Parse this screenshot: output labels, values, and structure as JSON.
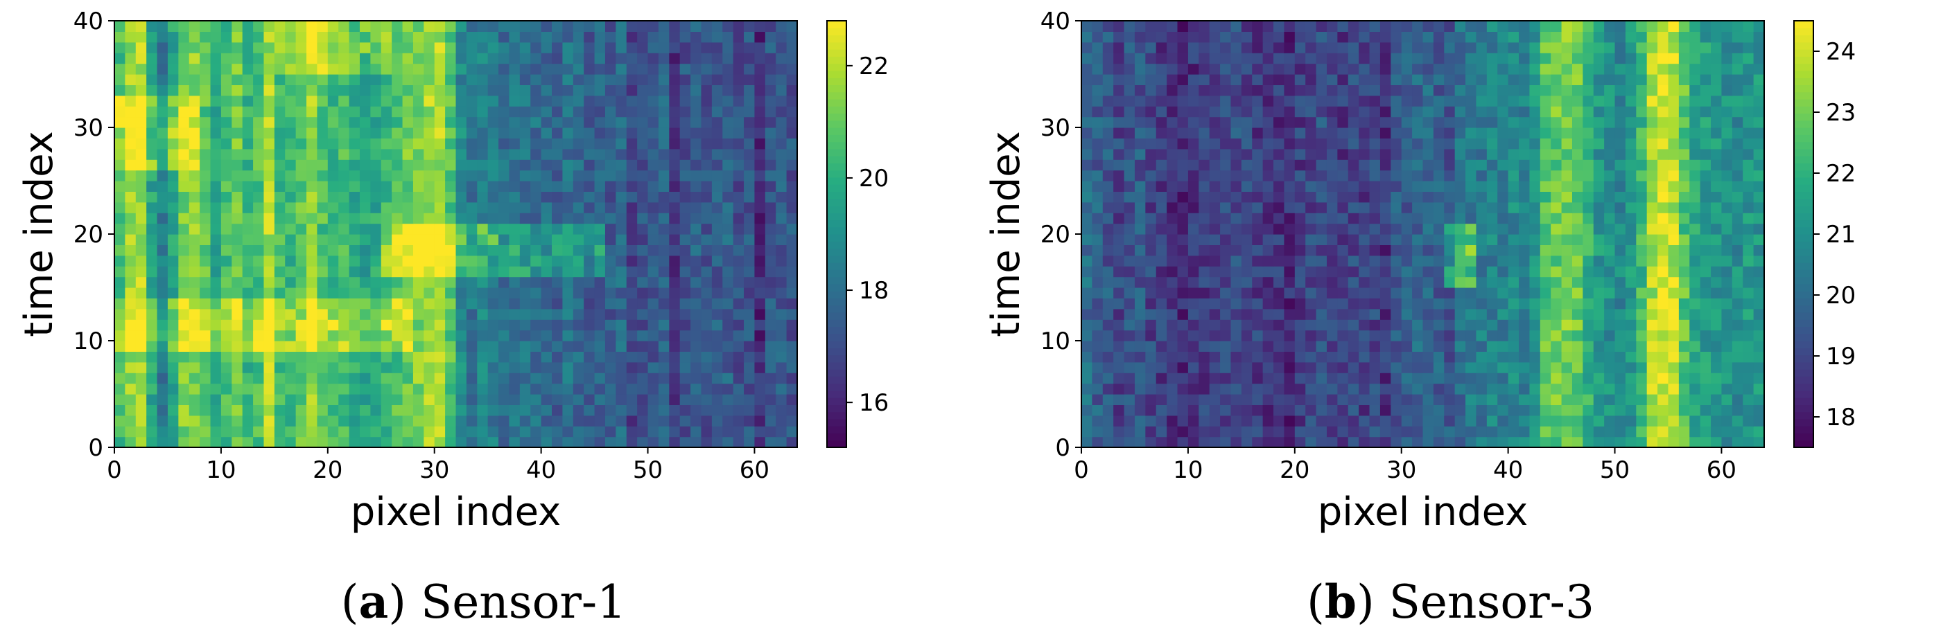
{
  "chart_data": [
    {
      "type": "heatmap",
      "panel_label": "a",
      "caption": "Sensor-1",
      "xlabel": "pixel index",
      "ylabel": "time index",
      "xlim": [
        0,
        64
      ],
      "ylim": [
        0,
        40
      ],
      "x_ticks": [
        0,
        10,
        20,
        30,
        40,
        50,
        60
      ],
      "y_ticks": [
        0,
        10,
        20,
        30,
        40
      ],
      "colorbar_ticks": [
        16,
        18,
        20,
        22
      ],
      "colorbar_range": [
        15.2,
        22.8
      ],
      "colormap": "viridis",
      "grid": false,
      "rows": 40,
      "cols": 64,
      "column_profile": [
        20.5,
        21.6,
        21.8,
        19.6,
        18.4,
        19.8,
        21.2,
        21.4,
        20.8,
        19.8,
        20.4,
        21.0,
        20.2,
        20.6,
        21.8,
        20.4,
        20.2,
        20.8,
        21.6,
        20.6,
        20.2,
        20.4,
        19.8,
        19.6,
        19.8,
        20.2,
        20.6,
        21.0,
        21.4,
        21.8,
        21.8,
        20.8,
        18.8,
        18.2,
        18.6,
        18.4,
        18.0,
        18.2,
        18.0,
        18.0,
        17.8,
        17.6,
        18.0,
        17.8,
        17.4,
        17.6,
        17.4,
        17.8,
        16.8,
        17.2,
        17.4,
        17.6,
        16.4,
        17.2,
        17.6,
        17.2,
        17.4,
        17.6,
        17.0,
        17.2,
        16.2,
        17.2,
        17.4,
        17.2
      ],
      "bright_bands": [
        {
          "t": [
            9,
            14
          ],
          "x": [
            0,
            28
          ],
          "delta": 1.6
        },
        {
          "t": [
            26,
            33
          ],
          "x": [
            0,
            8
          ],
          "delta": 1.6
        },
        {
          "t": [
            35,
            40
          ],
          "x": [
            15,
            26
          ],
          "delta": 1.4
        },
        {
          "t": [
            16,
            21
          ],
          "x": [
            25,
            46
          ],
          "delta": 1.8
        }
      ]
    },
    {
      "type": "heatmap",
      "panel_label": "b",
      "caption": "Sensor-3",
      "xlabel": "pixel index",
      "ylabel": "time index",
      "xlim": [
        0,
        64
      ],
      "ylim": [
        0,
        40
      ],
      "x_ticks": [
        0,
        10,
        20,
        30,
        40,
        50,
        60
      ],
      "y_ticks": [
        0,
        10,
        20,
        30,
        40
      ],
      "colorbar_ticks": [
        18,
        19,
        20,
        21,
        22,
        23,
        24
      ],
      "colorbar_range": [
        17.5,
        24.5
      ],
      "colormap": "viridis",
      "grid": false,
      "rows": 40,
      "cols": 64,
      "column_profile": [
        20.0,
        19.6,
        19.4,
        19.0,
        19.2,
        19.4,
        19.0,
        18.8,
        18.6,
        18.4,
        18.6,
        18.8,
        18.8,
        19.0,
        19.2,
        19.0,
        18.8,
        18.6,
        18.6,
        18.4,
        18.8,
        19.0,
        19.2,
        19.0,
        18.8,
        19.0,
        18.8,
        19.0,
        18.6,
        19.4,
        19.6,
        19.8,
        19.8,
        19.6,
        19.4,
        20.0,
        20.4,
        20.4,
        20.6,
        20.6,
        20.8,
        20.6,
        21.2,
        22.6,
        22.8,
        23.0,
        22.8,
        22.0,
        21.2,
        21.0,
        20.8,
        21.2,
        22.2,
        23.6,
        24.0,
        23.8,
        22.6,
        21.6,
        21.4,
        21.2,
        21.0,
        21.0,
        21.2,
        21.2
      ],
      "bright_bands": [
        {
          "t": [
            15,
            21
          ],
          "x": [
            34,
            37
          ],
          "delta": 2.4
        }
      ]
    }
  ]
}
